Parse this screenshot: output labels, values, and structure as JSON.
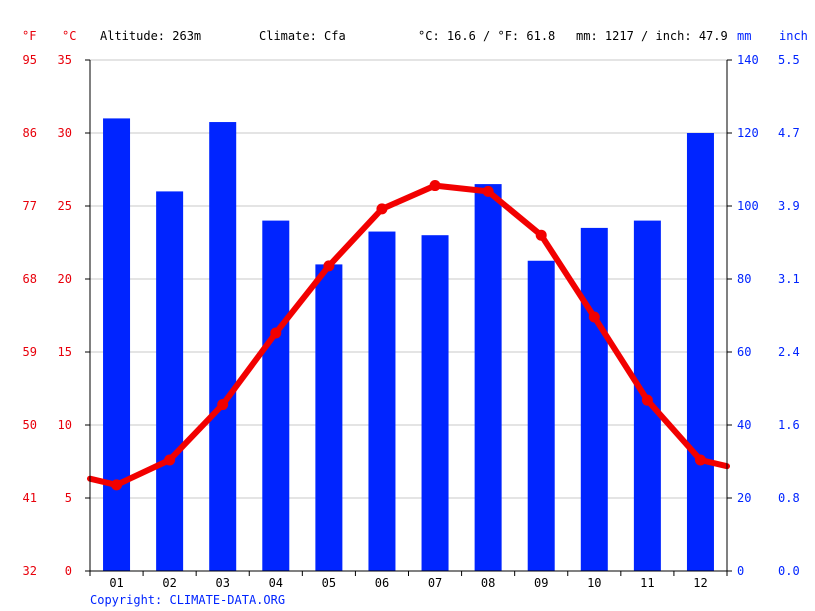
{
  "header": {
    "left_unit_f": "°F",
    "left_unit_c": "°C",
    "altitude": "Altitude: 263m",
    "climate": "Climate: Cfa",
    "avg_temp": "°C: 16.6 / °F: 61.8",
    "precip_total": "mm: 1217 / inch: 47.9",
    "right_unit_mm": "mm",
    "right_unit_inch": "inch"
  },
  "footer": {
    "copyright": "Copyright: CLIMATE-DATA.ORG"
  },
  "colors": {
    "precip_bar": "#0024ff",
    "temp_line": "#f20000",
    "temp_text": "#e8000b",
    "precip_text": "#0024ff"
  },
  "chart_data": {
    "type": "bar",
    "categories": [
      "01",
      "02",
      "03",
      "04",
      "05",
      "06",
      "07",
      "08",
      "09",
      "10",
      "11",
      "12"
    ],
    "series": [
      {
        "axis": "right",
        "values": [
          124,
          104,
          123,
          96,
          84,
          93,
          92,
          106,
          85,
          94,
          96,
          120
        ]
      },
      {
        "axis": "left",
        "values": [
          5.9,
          7.6,
          11.4,
          16.3,
          20.9,
          24.8,
          26.4,
          26.0,
          23.0,
          17.4,
          11.7,
          7.6
        ]
      }
    ],
    "left_axis_c": {
      "ylim": [
        0,
        35
      ],
      "ticks": [
        "35",
        "30",
        "25",
        "20",
        "15",
        "10",
        "5",
        "0"
      ]
    },
    "left_axis_f": {
      "ticks": [
        "95",
        "86",
        "77",
        "68",
        "59",
        "50",
        "41",
        "32"
      ]
    },
    "right_axis_mm": {
      "ylim": [
        0,
        140
      ],
      "ticks": [
        "140",
        "120",
        "100",
        "80",
        "60",
        "40",
        "20",
        "0"
      ]
    },
    "right_axis_inch": {
      "ticks": [
        "5.5",
        "4.7",
        "3.9",
        "3.1",
        "2.4",
        "1.6",
        "0.8",
        "0.0"
      ]
    },
    "grid": true
  }
}
